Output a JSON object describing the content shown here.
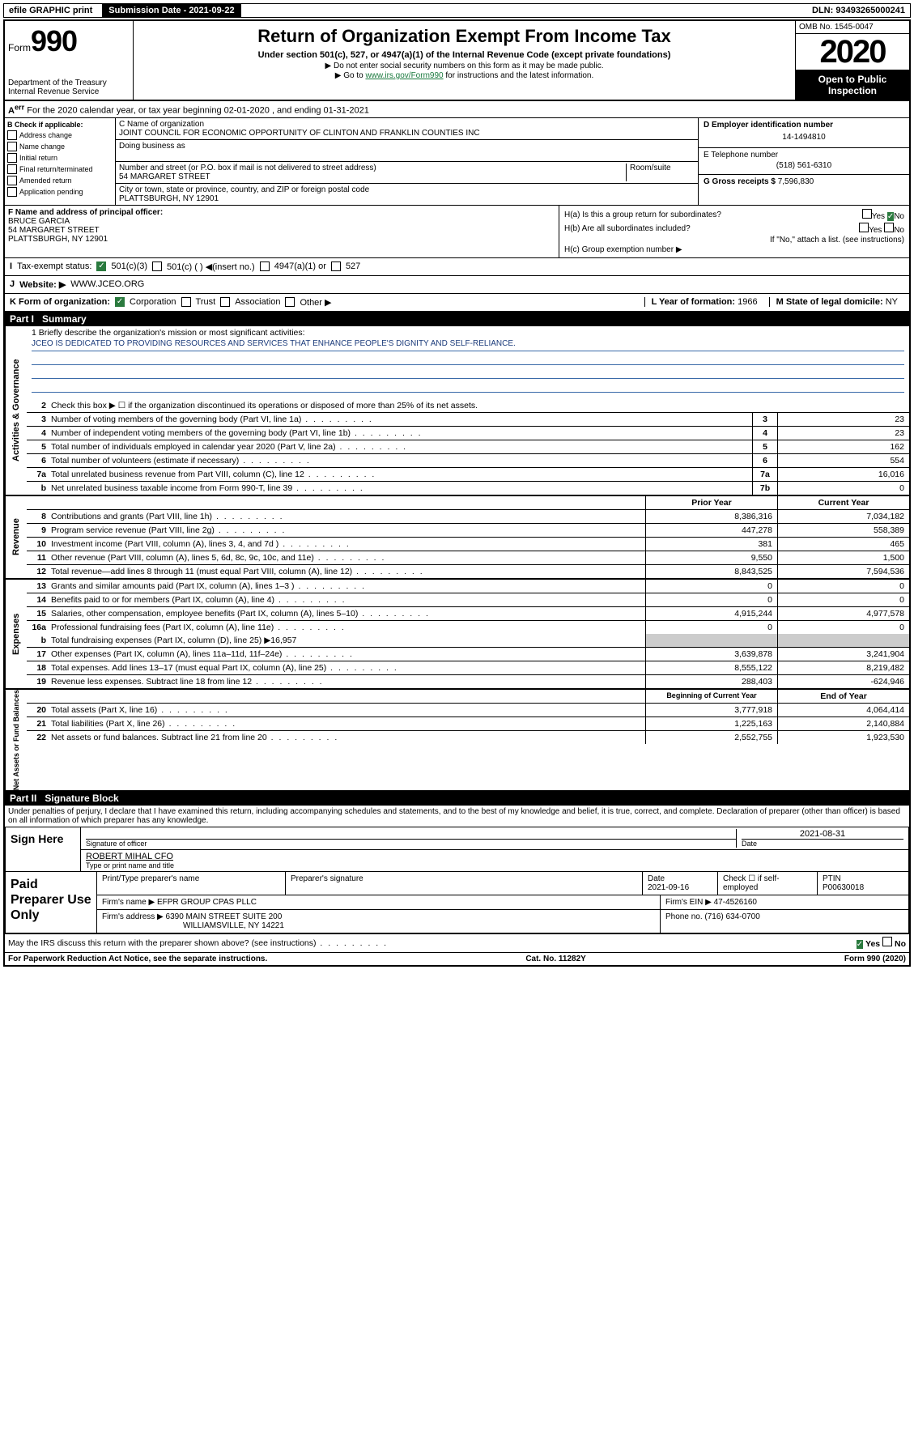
{
  "top": {
    "efile": "efile GRAPHIC print",
    "subdate_label": "Submission Date - 2021-09-22",
    "dln": "DLN: 93493265000241"
  },
  "header": {
    "form_prefix": "Form",
    "form_num": "990",
    "dept": "Department of the Treasury",
    "irs": "Internal Revenue Service",
    "title": "Return of Organization Exempt From Income Tax",
    "sub1": "Under section 501(c), 527, or 4947(a)(1) of the Internal Revenue Code (except private foundations)",
    "sub2": "▶ Do not enter social security numbers on this form as it may be made public.",
    "sub3_pre": "▶ Go to ",
    "sub3_link": "www.irs.gov/Form990",
    "sub3_post": " for instructions and the latest information.",
    "omb": "OMB No. 1545-0047",
    "year": "2020",
    "open": "Open to Public Inspection"
  },
  "row_a": "For the 2020 calendar year, or tax year beginning 02-01-2020    , and ending 01-31-2021",
  "b": {
    "label": "B Check if applicable:",
    "opts": [
      "Address change",
      "Name change",
      "Initial return",
      "Final return/terminated",
      "Amended return",
      "Application pending"
    ]
  },
  "c": {
    "name_label": "C Name of organization",
    "name": "JOINT COUNCIL FOR ECONOMIC OPPORTUNITY OF CLINTON AND FRANKLIN COUNTIES INC",
    "dba_label": "Doing business as",
    "addr_label": "Number and street (or P.O. box if mail is not delivered to street address)",
    "room": "Room/suite",
    "addr": "54 MARGARET STREET",
    "city_label": "City or town, state or province, country, and ZIP or foreign postal code",
    "city": "PLATTSBURGH, NY  12901"
  },
  "d": {
    "ein_label": "D Employer identification number",
    "ein": "14-1494810",
    "tel_label": "E Telephone number",
    "tel": "(518) 561-6310",
    "gross_label": "G Gross receipts $",
    "gross": "7,596,830"
  },
  "f": {
    "label": "F  Name and address of principal officer:",
    "name": "BRUCE GARCIA",
    "addr1": "54 MARGARET STREET",
    "addr2": "PLATTSBURGH, NY  12901"
  },
  "h": {
    "a": "H(a)  Is this a group return for subordinates?",
    "b": "H(b)  Are all subordinates included?",
    "note": "If \"No,\" attach a list. (see instructions)",
    "c": "H(c)  Group exemption number ▶",
    "yes": "Yes",
    "no": "No"
  },
  "i": {
    "label": "Tax-exempt status:",
    "o1": "501(c)(3)",
    "o2": "501(c) (  ) ◀(insert no.)",
    "o3": "4947(a)(1) or",
    "o4": "527"
  },
  "j": {
    "label": "Website: ▶",
    "val": "WWW.JCEO.ORG"
  },
  "k": {
    "label": "K Form of organization:",
    "corp": "Corporation",
    "trust": "Trust",
    "assoc": "Association",
    "other": "Other ▶",
    "l_label": "L Year of formation:",
    "l_val": "1966",
    "m_label": "M State of legal domicile:",
    "m_val": "NY"
  },
  "part1": {
    "label": "Part I",
    "title": "Summary"
  },
  "mission": {
    "q": "1  Briefly describe the organization's mission or most significant activities:",
    "text": "JCEO IS DEDICATED TO PROVIDING RESOURCES AND SERVICES THAT ENHANCE PEOPLE'S DIGNITY AND SELF-RELIANCE."
  },
  "gov": {
    "line2": "Check this box ▶ ☐  if the organization discontinued its operations or disposed of more than 25% of its net assets.",
    "lines": [
      {
        "n": "3",
        "t": "Number of voting members of the governing body (Part VI, line 1a)",
        "box": "3",
        "v": "23"
      },
      {
        "n": "4",
        "t": "Number of independent voting members of the governing body (Part VI, line 1b)",
        "box": "4",
        "v": "23"
      },
      {
        "n": "5",
        "t": "Total number of individuals employed in calendar year 2020 (Part V, line 2a)",
        "box": "5",
        "v": "162"
      },
      {
        "n": "6",
        "t": "Total number of volunteers (estimate if necessary)",
        "box": "6",
        "v": "554"
      },
      {
        "n": "7a",
        "t": "Total unrelated business revenue from Part VIII, column (C), line 12",
        "box": "7a",
        "v": "16,016"
      },
      {
        "n": "b",
        "t": "Net unrelated business taxable income from Form 990-T, line 39",
        "box": "7b",
        "v": "0"
      }
    ]
  },
  "rev": {
    "header_prior": "Prior Year",
    "header_curr": "Current Year",
    "lines": [
      {
        "n": "8",
        "t": "Contributions and grants (Part VIII, line 1h)",
        "p": "8,386,316",
        "c": "7,034,182"
      },
      {
        "n": "9",
        "t": "Program service revenue (Part VIII, line 2g)",
        "p": "447,278",
        "c": "558,389"
      },
      {
        "n": "10",
        "t": "Investment income (Part VIII, column (A), lines 3, 4, and 7d )",
        "p": "381",
        "c": "465"
      },
      {
        "n": "11",
        "t": "Other revenue (Part VIII, column (A), lines 5, 6d, 8c, 9c, 10c, and 11e)",
        "p": "9,550",
        "c": "1,500"
      },
      {
        "n": "12",
        "t": "Total revenue—add lines 8 through 11 (must equal Part VIII, column (A), line 12)",
        "p": "8,843,525",
        "c": "7,594,536"
      }
    ]
  },
  "exp": {
    "lines": [
      {
        "n": "13",
        "t": "Grants and similar amounts paid (Part IX, column (A), lines 1–3 )",
        "p": "0",
        "c": "0"
      },
      {
        "n": "14",
        "t": "Benefits paid to or for members (Part IX, column (A), line 4)",
        "p": "0",
        "c": "0"
      },
      {
        "n": "15",
        "t": "Salaries, other compensation, employee benefits (Part IX, column (A), lines 5–10)",
        "p": "4,915,244",
        "c": "4,977,578"
      },
      {
        "n": "16a",
        "t": "Professional fundraising fees (Part IX, column (A), line 11e)",
        "p": "0",
        "c": "0"
      }
    ],
    "b_line": "Total fundraising expenses (Part IX, column (D), line 25) ▶16,957",
    "lines2": [
      {
        "n": "17",
        "t": "Other expenses (Part IX, column (A), lines 11a–11d, 11f–24e)",
        "p": "3,639,878",
        "c": "3,241,904"
      },
      {
        "n": "18",
        "t": "Total expenses. Add lines 13–17 (must equal Part IX, column (A), line 25)",
        "p": "8,555,122",
        "c": "8,219,482"
      },
      {
        "n": "19",
        "t": "Revenue less expenses. Subtract line 18 from line 12",
        "p": "288,403",
        "c": "-624,946"
      }
    ]
  },
  "net": {
    "header_beg": "Beginning of Current Year",
    "header_end": "End of Year",
    "lines": [
      {
        "n": "20",
        "t": "Total assets (Part X, line 16)",
        "p": "3,777,918",
        "c": "4,064,414"
      },
      {
        "n": "21",
        "t": "Total liabilities (Part X, line 26)",
        "p": "1,225,163",
        "c": "2,140,884"
      },
      {
        "n": "22",
        "t": "Net assets or fund balances. Subtract line 21 from line 20",
        "p": "2,552,755",
        "c": "1,923,530"
      }
    ]
  },
  "tabs": {
    "gov": "Activities & Governance",
    "rev": "Revenue",
    "exp": "Expenses",
    "net": "Net Assets or Fund Balances"
  },
  "part2": {
    "label": "Part II",
    "title": "Signature Block"
  },
  "perjury": "Under penalties of perjury, I declare that I have examined this return, including accompanying schedules and statements, and to the best of my knowledge and belief, it is true, correct, and complete. Declaration of preparer (other than officer) is based on all information of which preparer has any knowledge.",
  "sign": {
    "here": "Sign Here",
    "sig_label": "Signature of officer",
    "date": "2021-08-31",
    "date_label": "Date",
    "name": "ROBERT MIHAL CFO",
    "name_label": "Type or print name and title"
  },
  "paid": {
    "label": "Paid Preparer Use Only",
    "h1": "Print/Type preparer's name",
    "h2": "Preparer's signature",
    "h3": "Date",
    "h3v": "2021-09-16",
    "h4": "Check ☐ if self-employed",
    "h5": "PTIN",
    "h5v": "P00630018",
    "firm_label": "Firm's name      ▶",
    "firm": "EFPR GROUP CPAS PLLC",
    "ein_label": "Firm's EIN ▶",
    "ein": "47-4526160",
    "addr_label": "Firm's address ▶",
    "addr1": "6390 MAIN STREET SUITE 200",
    "addr2": "WILLIAMSVILLE, NY  14221",
    "phone_label": "Phone no.",
    "phone": "(716) 634-0700"
  },
  "discuss": "May the IRS discuss this return with the preparer shown above? (see instructions)",
  "foot": {
    "left": "For Paperwork Reduction Act Notice, see the separate instructions.",
    "mid": "Cat. No. 11282Y",
    "right": "Form 990 (2020)"
  }
}
